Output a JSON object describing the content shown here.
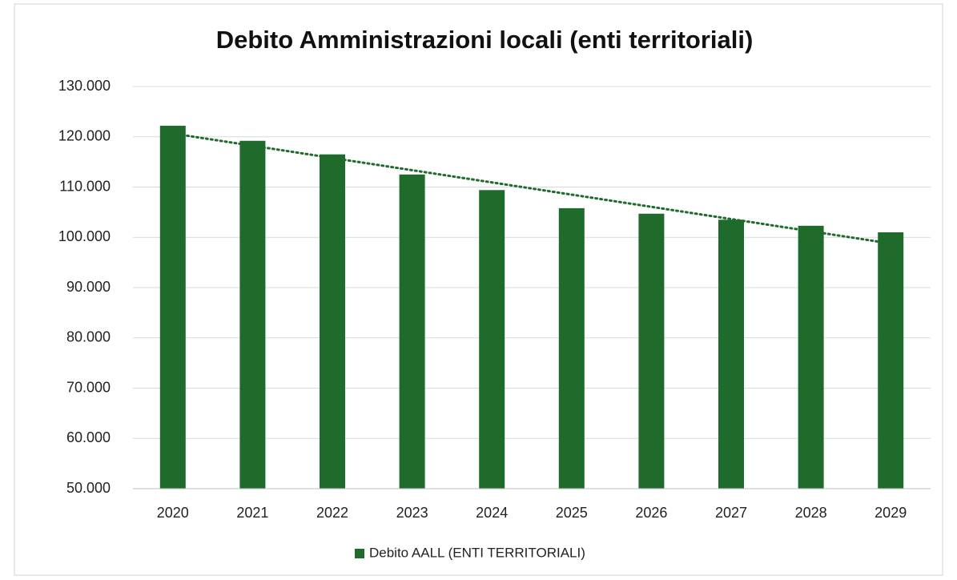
{
  "chart_data": {
    "type": "bar",
    "title": "Debito Amministrazioni locali (enti territoriali)",
    "categories": [
      "2020",
      "2021",
      "2022",
      "2023",
      "2024",
      "2025",
      "2026",
      "2027",
      "2028",
      "2029"
    ],
    "series": [
      {
        "name": "Debito AALL (ENTI TERRITORIALI)",
        "color": "#1e6b2b",
        "values": [
          122200,
          119200,
          116500,
          112500,
          109400,
          105800,
          104700,
          103500,
          102300,
          101000
        ]
      }
    ],
    "ylim": [
      50000,
      130000
    ],
    "yticks": [
      {
        "value": 50000,
        "label": "50.000"
      },
      {
        "value": 60000,
        "label": "60.000"
      },
      {
        "value": 70000,
        "label": "70.000"
      },
      {
        "value": 80000,
        "label": "80.000"
      },
      {
        "value": 90000,
        "label": "90.000"
      },
      {
        "value": 100000,
        "label": "100.000"
      },
      {
        "value": 110000,
        "label": "110.000"
      },
      {
        "value": 120000,
        "label": "120.000"
      },
      {
        "value": 130000,
        "label": "130.000"
      }
    ],
    "grid": true,
    "trendline": "linear",
    "legend": "bottom"
  }
}
